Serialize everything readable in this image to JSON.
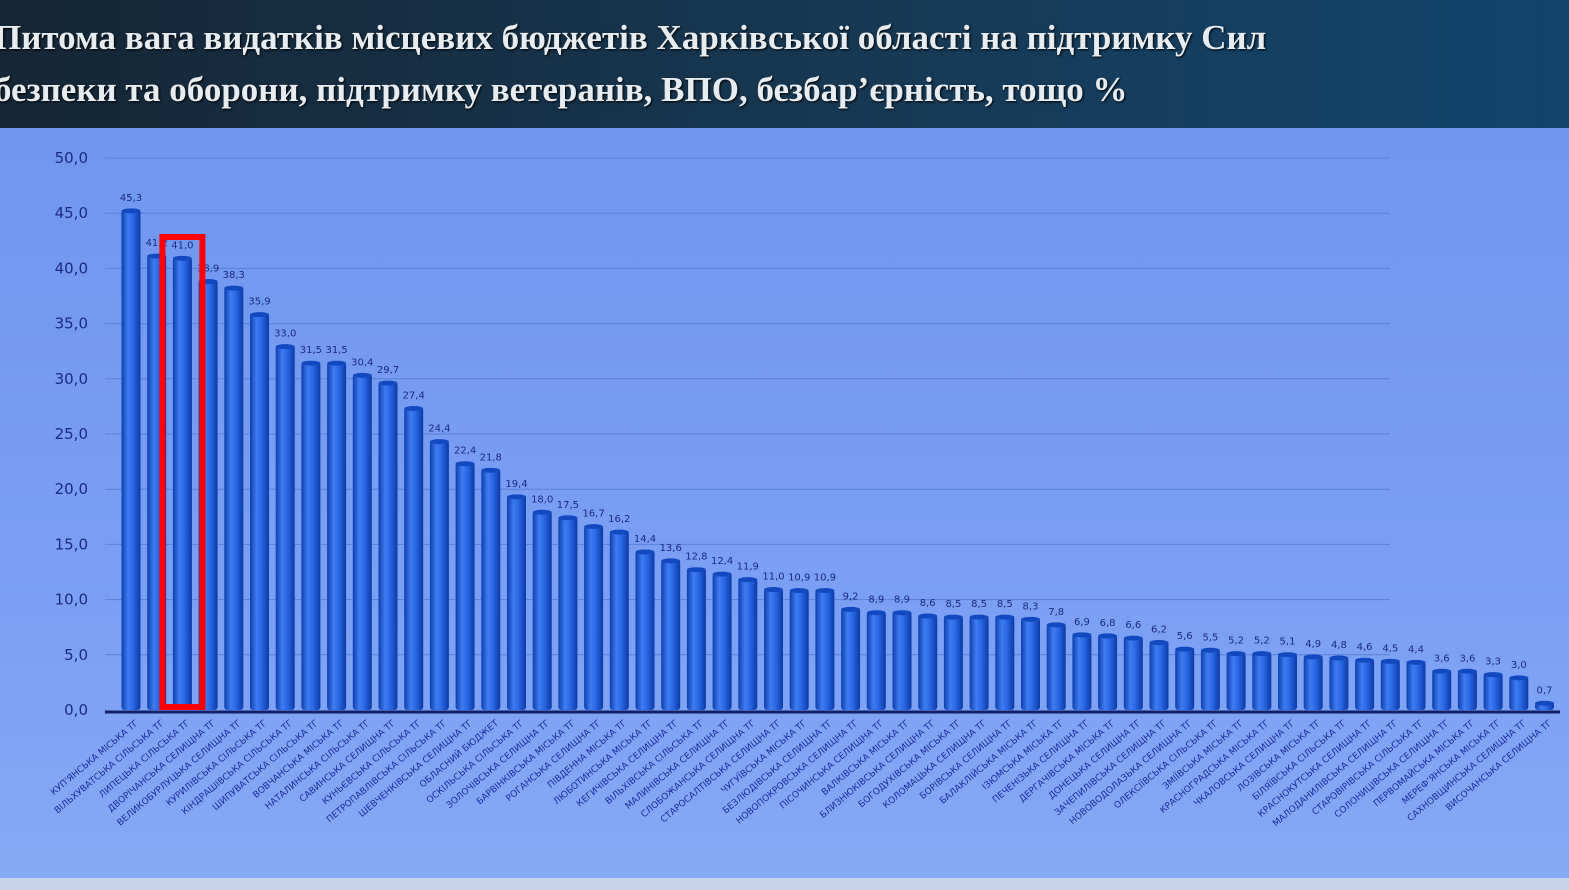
{
  "title": "Питома вага видатків місцевих бюджетів Харківської області на підтримку Сил\nбезпеки та оборони, підтримку ветеранів, ВПО, безбар’єрність, тощо %",
  "colors": {
    "bar": "#1e5fe0",
    "bar_dark": "#0d3fb0",
    "bar_light": "#4a86f5",
    "highlight": "#ff0000",
    "axis": "#12206a",
    "title_bg": "#152636"
  },
  "chart_data": {
    "type": "bar",
    "title": "Питома вага видатків місцевих бюджетів Харківської області на підтримку Сил безпеки та оборони, підтримку ветеранів, ВПО, безбар’єрність, тощо %",
    "ylim": [
      0,
      50
    ],
    "yticks": [
      "0,0",
      "5,0",
      "10,0",
      "15,0",
      "20,0",
      "25,0",
      "30,0",
      "35,0",
      "40,0",
      "45,0",
      "50,0"
    ],
    "grid": true,
    "highlighted_category": "Липецька сільська ТГ",
    "categories": [
      "Куп'янська міська ТГ",
      "Вільхуватська сільська ТГ",
      "Липецька сільська ТГ",
      "Дворічанська селищна ТГ",
      "Великобурлуцька селищна ТГ",
      "Курилівська сільська ТГ",
      "Кіндрашівська сільська ТГ",
      "Шипуватська сільська ТГ",
      "Вовчанська міська ТГ",
      "Наталинська сільська ТГ",
      "Савинська селищна ТГ",
      "Куньєвська сільська ТГ",
      "Петропавлівська сільська ТГ",
      "Шевченківська селищна ТГ",
      "Обласний бюджет",
      "Оскільська сільська ТГ",
      "Золочівська селищна ТГ",
      "Барвінківська міська ТГ",
      "Роганська селищна ТГ",
      "Південна міська ТГ",
      "Люботинська міська ТГ",
      "Кегичівська селищна ТГ",
      "Вільхівська сільська ТГ",
      "Малинівська селищна ТГ",
      "Слобожанська селищна ТГ",
      "Старосалтівська селищна ТГ",
      "Чугуївська міська ТГ",
      "Безлюдівська селищна ТГ",
      "Новопокровська селищна ТГ",
      "Пісочинська селищна ТГ",
      "Валківська міська ТГ",
      "Близнюківська селищна ТГ",
      "Богодухівська міська ТГ",
      "Коломацька селищна ТГ",
      "Борівська селищна ТГ",
      "Балаклійська міська ТГ",
      "Ізюмська міська ТГ",
      "Печенізька селищна ТГ",
      "Дергачівська міська ТГ",
      "Донецька селищна ТГ",
      "Зачепилівська селищна ТГ",
      "Нововодолазька селищна ТГ",
      "Олексіївська сільська ТГ",
      "Зміївська міська ТГ",
      "Красноградська міська ТГ",
      "Чкаловська селищна ТГ",
      "Лозівська міська ТГ",
      "Біляївська сільська ТГ",
      "Краснокутська селищна ТГ",
      "Малоданилівська селищна ТГ",
      "Старовірівська сільська ТГ",
      "Солоницівська селищна ТГ",
      "Первомайська міська ТГ",
      "Мерефʼянська міська ТГ",
      "Сахновщинська селищна ТГ",
      "Височанська селищна ТГ"
    ],
    "values": [
      45.3,
      41.2,
      41.0,
      38.9,
      38.3,
      35.9,
      33.0,
      31.5,
      31.5,
      30.4,
      29.7,
      27.4,
      24.4,
      22.4,
      21.8,
      19.4,
      18.0,
      17.5,
      16.7,
      16.2,
      14.4,
      13.6,
      12.8,
      12.4,
      11.9,
      11.0,
      10.9,
      10.9,
      9.2,
      8.9,
      8.9,
      8.6,
      8.5,
      8.5,
      8.5,
      8.3,
      7.8,
      6.9,
      6.8,
      6.6,
      6.2,
      5.6,
      5.5,
      5.2,
      5.2,
      5.1,
      4.9,
      4.8,
      4.6,
      4.5,
      4.4,
      3.6,
      3.6,
      3.3,
      3.0,
      0.7
    ]
  }
}
